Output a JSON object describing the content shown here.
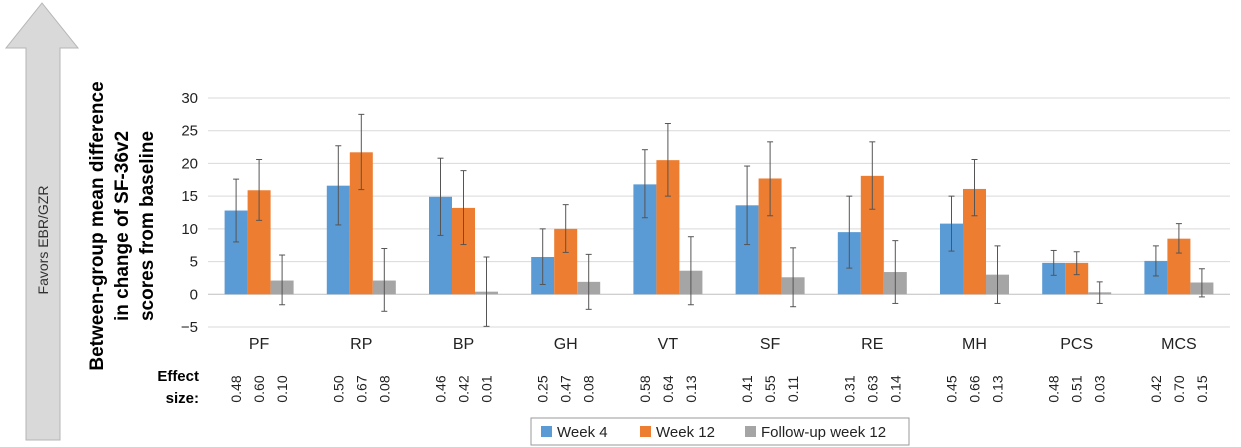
{
  "chart_data": {
    "type": "bar",
    "ylabel_lines": [
      "Between-group mean difference",
      "in change of SF-36v2",
      "scores from baseline"
    ],
    "side_arrow_label": "Favors EBR/GZR",
    "categories": [
      "PF",
      "RP",
      "BP",
      "GH",
      "VT",
      "SF",
      "RE",
      "MH",
      "PCS",
      "MCS"
    ],
    "ylim": [
      -5,
      30
    ],
    "yticks": [
      "30",
      "25",
      "20",
      "15",
      "10",
      "5",
      "0",
      "−5"
    ],
    "ytick_values": [
      30,
      25,
      20,
      15,
      10,
      5,
      0,
      -5
    ],
    "grid": true,
    "legend_position": "bottom",
    "effect_size_label_lines": [
      "Effect",
      "size:"
    ],
    "series": [
      {
        "name": "Week 4",
        "color": "#5b9bd5",
        "values": [
          12.8,
          16.6,
          14.9,
          5.7,
          16.8,
          13.6,
          9.5,
          10.8,
          4.8,
          5.1
        ],
        "err_low": [
          8.0,
          10.6,
          9.0,
          1.5,
          11.7,
          7.6,
          4.0,
          6.6,
          2.9,
          2.8
        ],
        "err_high": [
          17.6,
          22.7,
          20.8,
          10.0,
          22.1,
          19.6,
          15.0,
          15.0,
          6.7,
          7.4
        ],
        "effect_sizes": [
          "0.48",
          "0.50",
          "0.46",
          "0.25",
          "0.58",
          "0.41",
          "0.31",
          "0.45",
          "0.48",
          "0.42"
        ]
      },
      {
        "name": "Week 12",
        "color": "#ed7d31",
        "values": [
          15.9,
          21.7,
          13.2,
          10.0,
          20.5,
          17.7,
          18.1,
          16.1,
          4.8,
          8.5
        ],
        "err_low": [
          11.3,
          16.0,
          7.6,
          6.4,
          15.0,
          12.0,
          13.0,
          12.0,
          3.0,
          6.3
        ],
        "err_high": [
          20.6,
          27.5,
          18.9,
          13.7,
          26.1,
          23.3,
          23.3,
          20.6,
          6.5,
          10.8
        ],
        "effect_sizes": [
          "0.60",
          "0.67",
          "0.42",
          "0.47",
          "0.64",
          "0.55",
          "0.63",
          "0.66",
          "0.51",
          "0.70"
        ]
      },
      {
        "name": "Follow-up week 12",
        "color": "#a5a5a5",
        "values": [
          2.1,
          2.1,
          0.4,
          1.9,
          3.6,
          2.6,
          3.4,
          3.0,
          0.3,
          1.8
        ],
        "err_low": [
          -1.6,
          -2.6,
          -4.9,
          -2.3,
          -1.6,
          -1.9,
          -1.4,
          -1.4,
          -1.4,
          -0.4
        ],
        "err_high": [
          6.0,
          7.0,
          5.7,
          6.1,
          8.8,
          7.1,
          8.2,
          7.4,
          1.9,
          3.9
        ],
        "effect_sizes": [
          "0.10",
          "0.08",
          "0.01",
          "0.08",
          "0.13",
          "0.11",
          "0.14",
          "0.13",
          "0.03",
          "0.15"
        ]
      }
    ]
  }
}
